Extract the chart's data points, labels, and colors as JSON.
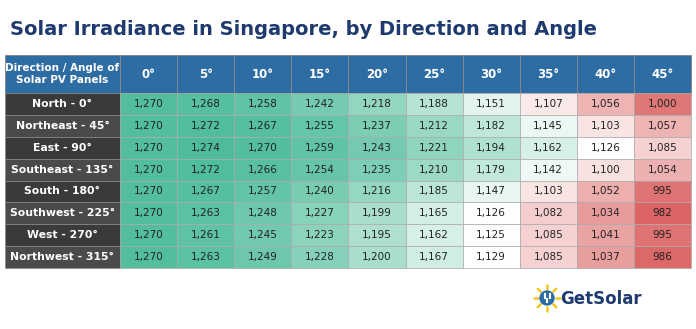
{
  "title": "Solar Irradiance in Singapore, by Direction and Angle",
  "title_color": "#1e3a6e",
  "header_row": [
    "Direction / Angle of\nSolar PV Panels",
    "0°",
    "5°",
    "10°",
    "15°",
    "20°",
    "25°",
    "30°",
    "35°",
    "40°",
    "45°"
  ],
  "row_labels": [
    "North - 0°",
    "Northeast - 45°",
    "East - 90°",
    "Southeast - 135°",
    "South - 180°",
    "Southwest - 225°",
    "West - 270°",
    "Northwest - 315°"
  ],
  "data": [
    [
      1270,
      1268,
      1258,
      1242,
      1218,
      1188,
      1151,
      1107,
      1056,
      1000
    ],
    [
      1270,
      1272,
      1267,
      1255,
      1237,
      1212,
      1182,
      1145,
      1103,
      1057
    ],
    [
      1270,
      1274,
      1270,
      1259,
      1243,
      1221,
      1194,
      1162,
      1126,
      1085
    ],
    [
      1270,
      1272,
      1266,
      1254,
      1235,
      1210,
      1179,
      1142,
      1100,
      1054
    ],
    [
      1270,
      1267,
      1257,
      1240,
      1216,
      1185,
      1147,
      1103,
      1052,
      995
    ],
    [
      1270,
      1263,
      1248,
      1227,
      1199,
      1165,
      1126,
      1082,
      1034,
      982
    ],
    [
      1270,
      1261,
      1245,
      1223,
      1195,
      1162,
      1125,
      1085,
      1041,
      995
    ],
    [
      1270,
      1263,
      1249,
      1228,
      1200,
      1167,
      1129,
      1085,
      1037,
      986
    ]
  ],
  "header_bg": "#2e6da4",
  "header_text_color": "#ffffff",
  "row_label_bg_even": "#3a3a3a",
  "row_label_bg_odd": "#4a4a4a",
  "row_label_text_color": "#ffffff",
  "outer_bg": "#ffffff",
  "logo_text": "GetSolar",
  "logo_color": "#1e3a6e",
  "logo_sun_color": "#f5c518",
  "logo_plug_color": "#2e6da4",
  "val_min": 982,
  "val_max": 1274,
  "grid_line_color": "#aaaaaa",
  "title_fontsize": 14,
  "header_fontsize": 8.5,
  "header_first_fontsize": 7.5,
  "cell_fontsize": 7.5,
  "row_label_fontsize": 7.8
}
